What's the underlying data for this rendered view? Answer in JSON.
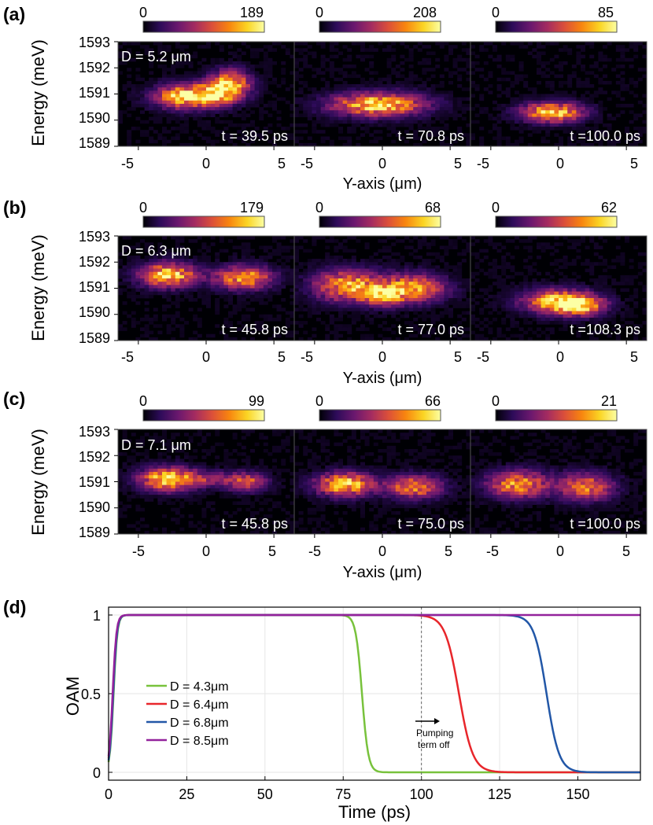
{
  "colors": {
    "green": "#78c23c",
    "red": "#e8262b",
    "blue": "#2257a7",
    "purple": "#93229c",
    "cmap": [
      "#000004",
      "#2d0b59",
      "#6b186e",
      "#a52c60",
      "#dc5039",
      "#f8850f",
      "#fbd524",
      "#fcffa4"
    ]
  },
  "chart_data": [
    {
      "type": "heatmap",
      "panel_label": "(a)",
      "ylabel": "Energy (meV)",
      "xlabel": "Y-axis (μm)",
      "y_ticks": [
        "1593",
        "1592",
        "1591",
        "1590",
        "1589"
      ],
      "x_ticks": [
        "-5",
        "0",
        "5"
      ],
      "xlim": [
        -6.5,
        6.5
      ],
      "ylim": [
        1589,
        1593
      ],
      "distance_label": "D = 5.2 μm",
      "subpanels": [
        {
          "colorbar_min": "0",
          "colorbar_max": "189",
          "time_label": "t = 39.5 ps",
          "blobs": [
            {
              "x": -1.5,
              "y": 1590.9,
              "sx": 1.5,
              "sy": 0.3,
              "a": 1.0
            },
            {
              "x": 1.8,
              "y": 1591.4,
              "sx": 1.0,
              "sy": 0.35,
              "a": 0.8
            },
            {
              "x": 0.8,
              "y": 1591.0,
              "sx": 1.2,
              "sy": 0.3,
              "a": 0.6
            }
          ]
        },
        {
          "colorbar_min": "0",
          "colorbar_max": "208",
          "time_label": "t = 70.8 ps",
          "blobs": [
            {
              "x": -0.3,
              "y": 1590.6,
              "sx": 2.3,
              "sy": 0.3,
              "a": 1.0
            }
          ]
        },
        {
          "colorbar_min": "0",
          "colorbar_max": "85",
          "time_label": "t =100.0 ps",
          "blobs": [
            {
              "x": -0.5,
              "y": 1590.3,
              "sx": 1.5,
              "sy": 0.25,
              "a": 1.0
            }
          ]
        }
      ]
    },
    {
      "type": "heatmap",
      "panel_label": "(b)",
      "ylabel": "Energy (meV)",
      "xlabel": "Y-axis (μm)",
      "y_ticks": [
        "1593",
        "1592",
        "1591",
        "1590",
        "1589"
      ],
      "x_ticks": [
        "-5",
        "0",
        "5"
      ],
      "xlim": [
        -6.5,
        6.5
      ],
      "ylim": [
        1589,
        1593
      ],
      "distance_label": "D = 6.3 μm",
      "subpanels": [
        {
          "colorbar_min": "0",
          "colorbar_max": "179",
          "time_label": "t = 45.8 ps",
          "blobs": [
            {
              "x": -2.8,
              "y": 1591.5,
              "sx": 1.4,
              "sy": 0.3,
              "a": 1.0
            },
            {
              "x": 2.8,
              "y": 1591.4,
              "sx": 1.4,
              "sy": 0.3,
              "a": 0.85
            }
          ]
        },
        {
          "colorbar_min": "0",
          "colorbar_max": "68",
          "time_label": "t = 77.0 ps",
          "blobs": [
            {
              "x": -2.5,
              "y": 1591.1,
              "sx": 1.7,
              "sy": 0.4,
              "a": 0.85
            },
            {
              "x": 2.2,
              "y": 1591.0,
              "sx": 1.6,
              "sy": 0.35,
              "a": 0.85
            },
            {
              "x": 0.0,
              "y": 1590.7,
              "sx": 1.0,
              "sy": 0.25,
              "a": 0.7
            }
          ]
        },
        {
          "colorbar_min": "0",
          "colorbar_max": "62",
          "time_label": "t =108.3 ps",
          "blobs": [
            {
              "x": 0.0,
              "y": 1590.5,
              "sx": 1.8,
              "sy": 0.3,
              "a": 0.9
            },
            {
              "x": 1.5,
              "y": 1590.3,
              "sx": 1.2,
              "sy": 0.25,
              "a": 0.7
            }
          ]
        }
      ]
    },
    {
      "type": "heatmap",
      "panel_label": "(c)",
      "ylabel": "Energy (meV)",
      "xlabel": "Y-axis (μm)",
      "y_ticks": [
        "1593",
        "1592",
        "1591",
        "1590",
        "1589"
      ],
      "x_ticks": [
        "-5",
        "0",
        "5"
      ],
      "xlim": [
        -6.5,
        6.5
      ],
      "ylim": [
        1589,
        1593
      ],
      "distance_label": "D = 7.1 μm",
      "subpanels": [
        {
          "colorbar_min": "0",
          "colorbar_max": "99",
          "time_label": "t = 45.8 ps",
          "blobs": [
            {
              "x": -2.8,
              "y": 1591.1,
              "sx": 1.4,
              "sy": 0.3,
              "a": 1.0
            },
            {
              "x": 3.0,
              "y": 1591.0,
              "sx": 1.0,
              "sy": 0.25,
              "a": 0.6
            },
            {
              "x": 0.3,
              "y": 1591.1,
              "sx": 1.2,
              "sy": 0.2,
              "a": 0.35
            }
          ]
        },
        {
          "colorbar_min": "0",
          "colorbar_max": "66",
          "time_label": "t = 75.0 ps",
          "blobs": [
            {
              "x": -2.8,
              "y": 1590.9,
              "sx": 1.4,
              "sy": 0.3,
              "a": 0.95
            },
            {
              "x": 2.3,
              "y": 1590.8,
              "sx": 1.4,
              "sy": 0.3,
              "a": 0.75
            }
          ]
        },
        {
          "colorbar_min": "0",
          "colorbar_max": "21",
          "time_label": "t =100.0 ps",
          "blobs": [
            {
              "x": -3.0,
              "y": 1590.9,
              "sx": 1.5,
              "sy": 0.35,
              "a": 0.8
            },
            {
              "x": 2.0,
              "y": 1590.8,
              "sx": 1.4,
              "sy": 0.35,
              "a": 0.7
            }
          ]
        }
      ]
    },
    {
      "type": "line",
      "panel_label": "(d)",
      "xlabel": "Time (ps)",
      "ylabel": "OAM",
      "xlim": [
        0,
        170
      ],
      "ylim": [
        -0.05,
        1.05
      ],
      "x_ticks": [
        0,
        25,
        50,
        75,
        100,
        125,
        150
      ],
      "y_ticks": [
        0,
        0.5,
        1
      ],
      "y_tick_labels": [
        "0",
        "0.5",
        "1"
      ],
      "grid": true,
      "vline_x": 100,
      "annotation": [
        "Pumping",
        "term off"
      ],
      "series": [
        {
          "name": "D = 4.3μm",
          "color": "#78c23c",
          "rise_center": 1.6,
          "rise_width": 0.6,
          "drop_center": 81,
          "drop_width": 1.0
        },
        {
          "name": "D = 6.4μm",
          "color": "#e8262b",
          "rise_center": 1.4,
          "rise_width": 0.6,
          "drop_center": 112,
          "drop_width": 2.2
        },
        {
          "name": "D = 6.8μm",
          "color": "#2257a7",
          "rise_center": 1.5,
          "rise_width": 0.6,
          "drop_center": 140,
          "drop_width": 2.0
        },
        {
          "name": "D = 8.5μm",
          "color": "#93229c",
          "rise_center": 1.3,
          "rise_width": 0.6,
          "drop_center": null,
          "drop_width": null
        }
      ]
    }
  ]
}
